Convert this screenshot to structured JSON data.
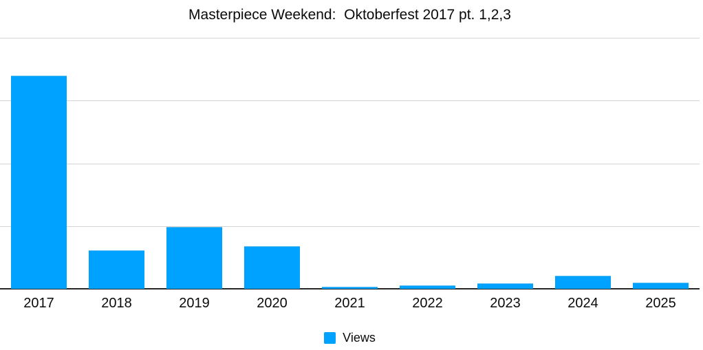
{
  "title": "Masterpiece Weekend:  Oktoberfest 2017 pt. 1,2,3",
  "chart_data": {
    "type": "bar",
    "title": "Masterpiece Weekend:  Oktoberfest 2017 pt. 1,2,3",
    "categories": [
      "2017",
      "2018",
      "2019",
      "2020",
      "2021",
      "2022",
      "2023",
      "2024",
      "2025"
    ],
    "series": [
      {
        "name": "Views",
        "values": [
          340,
          61,
          99,
          68,
          3,
          5,
          9,
          21,
          10
        ]
      }
    ],
    "xlabel": "",
    "ylabel": "",
    "y_axis": "unlabeled (values estimated in gridline units, 100 per gridline)",
    "ylim": [
      0,
      400
    ],
    "gridline_interval": 100,
    "grid": true,
    "legend_position": "bottom-center",
    "colors": {
      "bar": "#00A2FF",
      "bar_top_edge": "#55B9F2",
      "gridline": "#D4D4D4",
      "axis_line": "#262626",
      "text": "#0A0A0A",
      "background": "#FFFFFF"
    }
  },
  "legend": {
    "label": "Views",
    "swatch_color": "#00A2FF"
  }
}
